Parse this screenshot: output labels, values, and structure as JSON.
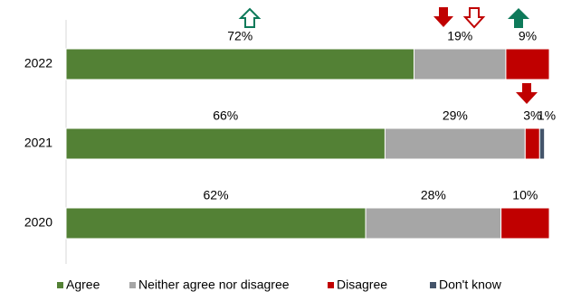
{
  "chart_data": {
    "type": "stacked-bar-horizontal",
    "categories": [
      "2022",
      "2021",
      "2020"
    ],
    "series": [
      {
        "name": "Agree",
        "color": "#538135",
        "values": [
          72,
          66,
          62
        ],
        "value_labels": [
          "72%",
          "66%",
          "62%"
        ]
      },
      {
        "name": "Neither agree nor disagree",
        "color": "#a6a6a6",
        "values": [
          19,
          29,
          28
        ],
        "value_labels": [
          "19%",
          "29%",
          "28%"
        ]
      },
      {
        "name": "Disagree",
        "color": "#c00000",
        "values": [
          9,
          3,
          10
        ],
        "value_labels": [
          "9%",
          "3%",
          "10%"
        ]
      },
      {
        "name": "Don't know",
        "color": "#44546a",
        "values": [
          null,
          1,
          null
        ],
        "value_labels": [
          null,
          "1%",
          null
        ]
      }
    ],
    "legend": "bottom"
  }
}
